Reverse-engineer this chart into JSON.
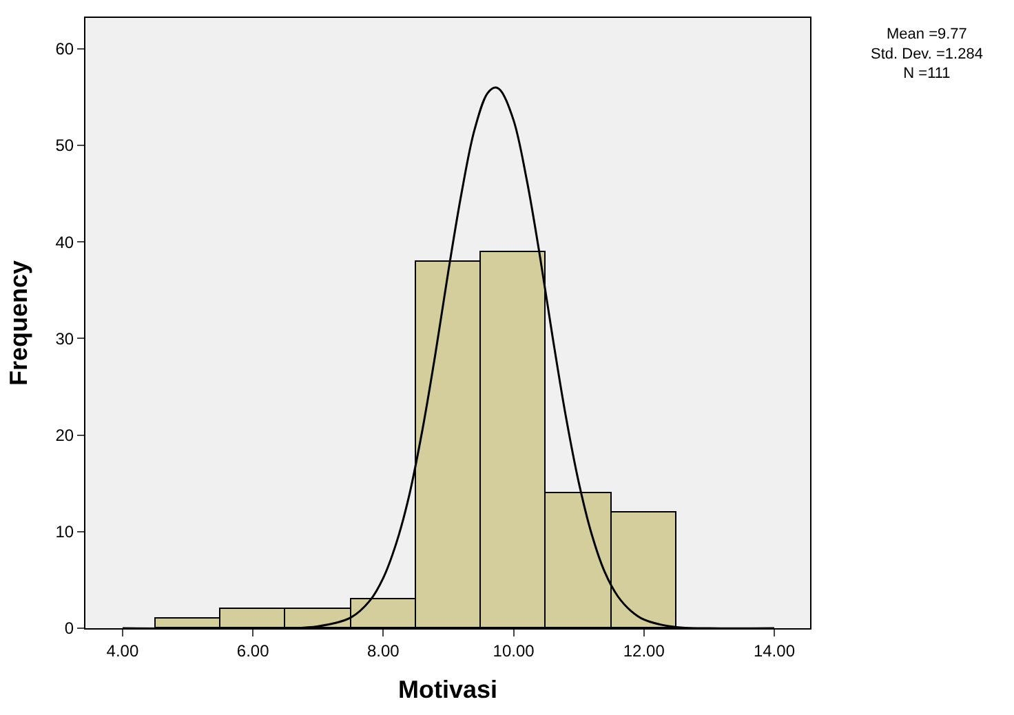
{
  "chart_data": {
    "type": "histogram",
    "xlabel": "Motivasi",
    "ylabel": "Frequency",
    "bins": [
      4.5,
      5.5,
      6.5,
      7.5,
      8.5,
      9.5,
      10.5,
      11.5,
      12.5
    ],
    "values": [
      1,
      2,
      2,
      3,
      38,
      39,
      14,
      12
    ],
    "color": "#d3ce9b",
    "series": [
      {
        "type": "line",
        "color": "#000000",
        "x": [
          4.0,
          6.5,
          7.0,
          7.5,
          7.8,
          8.0,
          8.2,
          8.4,
          8.6,
          8.8,
          9.0,
          9.2,
          9.4,
          9.6,
          9.72,
          9.8,
          10.0,
          10.2,
          10.4,
          10.6,
          10.8,
          11.0,
          11.2,
          11.4,
          11.6,
          11.8,
          12.0,
          12.5,
          13.0,
          14.0
        ],
        "values": [
          0,
          0,
          0.2,
          1.1,
          2.9,
          5.2,
          8.8,
          13.8,
          20.5,
          28.4,
          37,
          45,
          51.6,
          55.4,
          56,
          55.7,
          52.6,
          46.5,
          38.7,
          30.1,
          22,
          15.1,
          9.7,
          5.8,
          3.3,
          1.8,
          0.9,
          0.1,
          0,
          0
        ]
      }
    ],
    "xlim": [
      3.43,
      14.55
    ],
    "ylim": [
      0,
      63.2
    ],
    "xticks": [
      {
        "value": 4,
        "label": "4.00"
      },
      {
        "value": 6,
        "label": "6.00"
      },
      {
        "value": 8,
        "label": "8.00"
      },
      {
        "value": 10,
        "label": "10.00"
      },
      {
        "value": 12,
        "label": "12.00"
      },
      {
        "value": 14,
        "label": "14.00"
      }
    ],
    "yticks": [
      0,
      10,
      20,
      30,
      40,
      50,
      60
    ],
    "annotations": [
      "Mean =9.77\nStd. Dev. =1.284\nN =111"
    ],
    "grid": false
  }
}
